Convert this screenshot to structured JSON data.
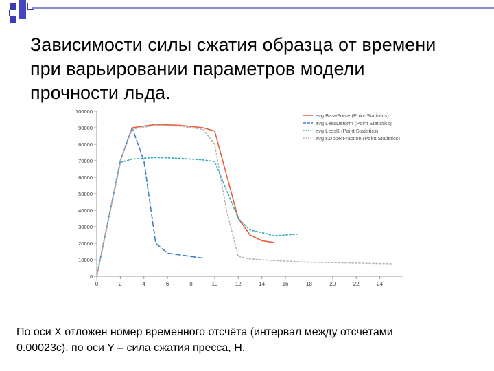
{
  "slide": {
    "title_lines": [
      "Зависимости силы сжатия образца от времени",
      "при варьировании параметров модели",
      "прочности льда."
    ],
    "caption_lines": [
      "По оси X отложен номер временного отсчёта (интервал между отсчётами",
      "0.00023с), по оси Y – сила сжатия пресса, Н."
    ],
    "accent_color": "#3b3bb5"
  },
  "chart_data": {
    "type": "line",
    "x_ticks": [
      "0",
      "2",
      "4",
      "6",
      "8",
      "10",
      "12",
      "14",
      "16",
      "18",
      "20",
      "22",
      "24"
    ],
    "y_ticks": [
      "0",
      "10000",
      "20000",
      "30000",
      "40000",
      "50000",
      "60000",
      "70000",
      "80000",
      "90000",
      "100000"
    ],
    "xlim": [
      0,
      26
    ],
    "ylim": [
      0,
      100000
    ],
    "legend_position": "top-right",
    "grid": false,
    "series": [
      {
        "name": "avg BaseForce (Point Statistics)",
        "color": "#e8603c",
        "style": "solid",
        "x": [
          0,
          2,
          3,
          5,
          7,
          9,
          10,
          12,
          13,
          14,
          15
        ],
        "y": [
          0,
          70000,
          90000,
          92000,
          91500,
          90000,
          88000,
          35000,
          25000,
          21500,
          20500
        ]
      },
      {
        "name": "avg LessDeform (Point Statistics)",
        "color": "#3a7fc4",
        "style": "dashed",
        "x": [
          0,
          2,
          3,
          4,
          5,
          6,
          7,
          8,
          9
        ],
        "y": [
          0,
          70000,
          90000,
          70000,
          20000,
          14000,
          13000,
          12000,
          11000
        ]
      },
      {
        "name": "avg LessK (Point Statistics)",
        "color": "#2aa7b8",
        "style": "dotted",
        "x": [
          0,
          2,
          3,
          4,
          5,
          7,
          9,
          10,
          12,
          13,
          14,
          15,
          16,
          17
        ],
        "y": [
          0,
          69000,
          71000,
          71500,
          72000,
          71500,
          70500,
          69500,
          35000,
          28000,
          26500,
          24500,
          25000,
          25500
        ]
      },
      {
        "name": "avg KUpperFraction (Point Statistics)",
        "color": "#b4b4b4",
        "style": "dotted",
        "x": [
          0,
          2,
          3,
          5,
          7,
          9,
          10,
          11,
          12,
          13,
          15,
          18,
          22,
          25
        ],
        "y": [
          0,
          70000,
          89000,
          91500,
          91000,
          89000,
          80000,
          40000,
          12000,
          10500,
          9500,
          8500,
          8000,
          7500
        ]
      }
    ]
  }
}
